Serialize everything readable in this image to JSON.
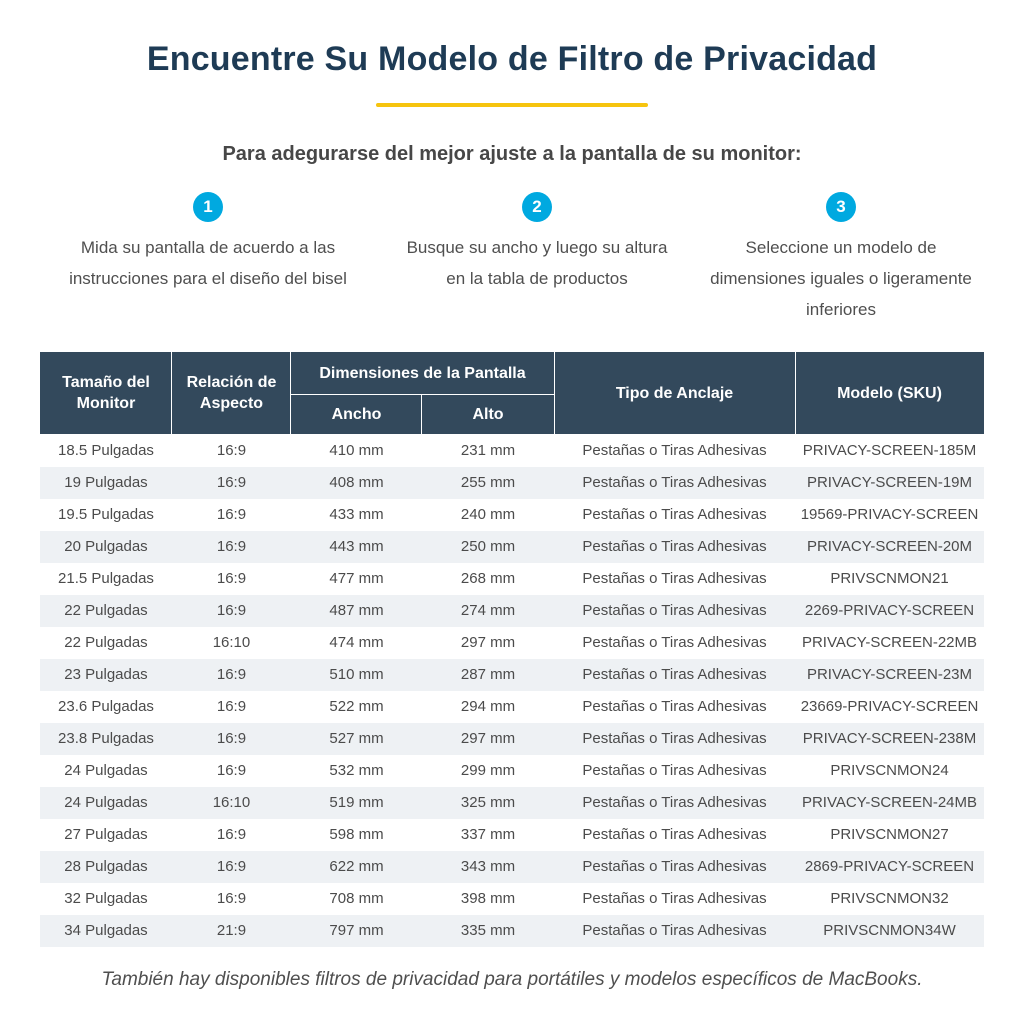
{
  "page": {
    "title": "Encuentre Su Modelo de Filtro de Privacidad",
    "subtitle": "Para adegurarse del mejor ajuste a la pantalla de su monitor:",
    "footer": "También hay disponibles filtros de privacidad para portátiles y modelos específicos de MacBooks."
  },
  "colors": {
    "title_text": "#1e3b55",
    "accent_underline": "#f6c40e",
    "step_badge": "#00a9e0",
    "table_header_bg": "#33495c",
    "row_alternate_bg": "#eef1f4",
    "body_text": "#4b4b4b"
  },
  "steps": [
    {
      "number": "1",
      "text": "Mida su pantalla de acuerdo a las instrucciones para el diseño del bisel"
    },
    {
      "number": "2",
      "text": "Busque su ancho y luego su altura en la tabla de productos"
    },
    {
      "number": "3",
      "text": "Seleccione un modelo de dimensiones iguales o ligeramente inferiores"
    }
  ],
  "table": {
    "headers": {
      "monitor_size": "Tamaño del Monitor",
      "aspect_ratio": "Relación de Aspecto",
      "screen_dimensions": "Dimensiones de la Pantalla",
      "width": "Ancho",
      "height": "Alto",
      "anchor_type": "Tipo de Anclaje",
      "model_sku": "Modelo (SKU)"
    },
    "rows": [
      [
        "18.5 Pulgadas",
        "16:9",
        "410 mm",
        "231 mm",
        "Pestañas o Tiras Adhesivas",
        "PRIVACY-SCREEN-185M"
      ],
      [
        "19 Pulgadas",
        "16:9",
        "408 mm",
        "255 mm",
        "Pestañas o Tiras Adhesivas",
        "PRIVACY-SCREEN-19M"
      ],
      [
        "19.5 Pulgadas",
        "16:9",
        "433 mm",
        "240 mm",
        "Pestañas o Tiras Adhesivas",
        "19569-PRIVACY-SCREEN"
      ],
      [
        "20 Pulgadas",
        "16:9",
        "443 mm",
        "250 mm",
        "Pestañas o Tiras Adhesivas",
        "PRIVACY-SCREEN-20M"
      ],
      [
        "21.5 Pulgadas",
        "16:9",
        "477 mm",
        "268 mm",
        "Pestañas o Tiras Adhesivas",
        "PRIVSCNMON21"
      ],
      [
        "22 Pulgadas",
        "16:9",
        "487 mm",
        "274 mm",
        "Pestañas o Tiras Adhesivas",
        "2269-PRIVACY-SCREEN"
      ],
      [
        "22 Pulgadas",
        "16:10",
        "474 mm",
        "297 mm",
        "Pestañas o Tiras Adhesivas",
        "PRIVACY-SCREEN-22MB"
      ],
      [
        "23 Pulgadas",
        "16:9",
        "510 mm",
        "287 mm",
        "Pestañas o Tiras Adhesivas",
        "PRIVACY-SCREEN-23M"
      ],
      [
        "23.6 Pulgadas",
        "16:9",
        "522 mm",
        "294 mm",
        "Pestañas o Tiras Adhesivas",
        "23669-PRIVACY-SCREEN"
      ],
      [
        "23.8 Pulgadas",
        "16:9",
        "527 mm",
        "297 mm",
        "Pestañas o Tiras Adhesivas",
        "PRIVACY-SCREEN-238M"
      ],
      [
        "24 Pulgadas",
        "16:9",
        "532 mm",
        "299 mm",
        "Pestañas o Tiras Adhesivas",
        "PRIVSCNMON24"
      ],
      [
        "24 Pulgadas",
        "16:10",
        "519 mm",
        "325 mm",
        "Pestañas o Tiras Adhesivas",
        "PRIVACY-SCREEN-24MB"
      ],
      [
        "27 Pulgadas",
        "16:9",
        "598 mm",
        "337 mm",
        "Pestañas o Tiras Adhesivas",
        "PRIVSCNMON27"
      ],
      [
        "28 Pulgadas",
        "16:9",
        "622 mm",
        "343 mm",
        "Pestañas o Tiras Adhesivas",
        "2869-PRIVACY-SCREEN"
      ],
      [
        "32 Pulgadas",
        "16:9",
        "708 mm",
        "398 mm",
        "Pestañas o Tiras Adhesivas",
        "PRIVSCNMON32"
      ],
      [
        "34 Pulgadas",
        "21:9",
        "797 mm",
        "335 mm",
        "Pestañas o Tiras Adhesivas",
        "PRIVSCNMON34W"
      ]
    ]
  }
}
